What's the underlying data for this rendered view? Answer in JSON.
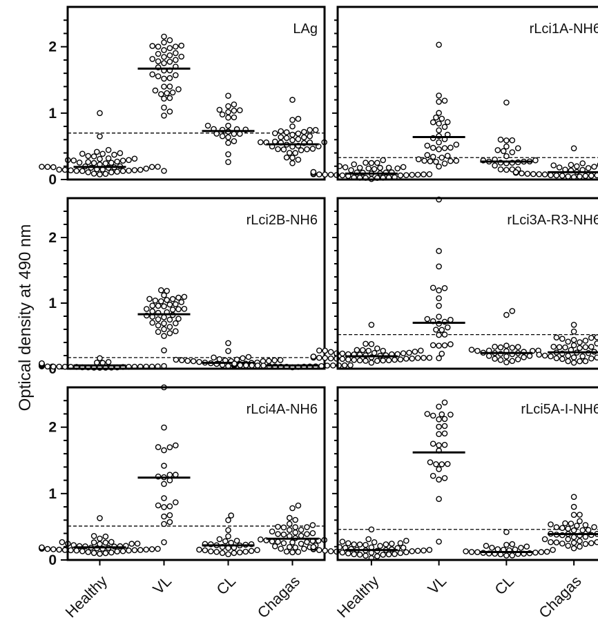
{
  "chart_data": {
    "type": "scatter",
    "ylabel": "Optical density at 490 nm",
    "categories": [
      "Healthy",
      "VL",
      "CL",
      "Chagas"
    ],
    "ylim": [
      0,
      2.6
    ],
    "yticks": [
      0,
      1,
      2
    ],
    "panels": [
      {
        "title": "LAg",
        "cutoff": 0.7,
        "groups": [
          {
            "category": "Healthy",
            "median": 0.19,
            "count": 50,
            "low": 0.05,
            "high": 0.48,
            "outliers": [
              0.65,
              1.0
            ]
          },
          {
            "category": "VL",
            "median": 1.67,
            "count": 40,
            "low": 0.87,
            "high": 2.26,
            "outliers": [
              0.13
            ]
          },
          {
            "category": "CL",
            "median": 0.73,
            "count": 26,
            "low": 0.0,
            "high": 1.37,
            "outliers": []
          },
          {
            "category": "Chagas",
            "median": 0.53,
            "count": 40,
            "low": 0.13,
            "high": 0.95,
            "outliers": [
              1.2
            ]
          }
        ]
      },
      {
        "title": "rLci1A-NH6",
        "cutoff": 0.33,
        "groups": [
          {
            "category": "Healthy",
            "median": 0.09,
            "count": 50,
            "low": 0.0,
            "high": 0.31,
            "outliers": []
          },
          {
            "category": "VL",
            "median": 0.64,
            "count": 34,
            "low": 0.0,
            "high": 1.33,
            "outliers": [
              2.03
            ]
          },
          {
            "category": "CL",
            "median": 0.27,
            "count": 24,
            "low": 0.0,
            "high": 0.65,
            "outliers": [
              1.16
            ]
          },
          {
            "category": "Chagas",
            "median": 0.11,
            "count": 40,
            "low": 0.02,
            "high": 0.28,
            "outliers": [
              0.47
            ]
          }
        ]
      },
      {
        "title": "rLci2B-NH6",
        "cutoff": 0.17,
        "groups": [
          {
            "category": "Healthy",
            "median": 0.05,
            "count": 50,
            "low": 0.01,
            "high": 0.12,
            "outliers": [
              0.16
            ]
          },
          {
            "category": "VL",
            "median": 0.83,
            "count": 40,
            "low": 0.43,
            "high": 1.32,
            "outliers": [
              0.28,
              0.04
            ]
          },
          {
            "category": "CL",
            "median": 0.09,
            "count": 26,
            "low": 0.03,
            "high": 0.2,
            "outliers": [
              0.27,
              0.39
            ]
          },
          {
            "category": "Chagas",
            "median": 0.05,
            "count": 40,
            "low": 0.02,
            "high": 0.08,
            "outliers": []
          }
        ]
      },
      {
        "title": "rLci3A-R3-NH6",
        "cutoff": 0.52,
        "groups": [
          {
            "category": "Healthy",
            "median": 0.19,
            "count": 50,
            "low": 0.03,
            "high": 0.42,
            "outliers": [
              0.67
            ]
          },
          {
            "category": "VL",
            "median": 0.7,
            "count": 24,
            "low": 0.0,
            "high": 1.87,
            "outliers": [
              2.58
            ]
          },
          {
            "category": "CL",
            "median": 0.24,
            "count": 26,
            "low": 0.07,
            "high": 0.41,
            "outliers": [
              0.82,
              0.88
            ]
          },
          {
            "category": "Chagas",
            "median": 0.25,
            "count": 40,
            "low": 0.04,
            "high": 0.58,
            "outliers": [
              0.67
            ]
          }
        ]
      },
      {
        "title": "rLci4A-NH6",
        "cutoff": 0.51,
        "groups": [
          {
            "category": "Healthy",
            "median": 0.19,
            "count": 50,
            "low": 0.07,
            "high": 0.45,
            "outliers": [
              0.63
            ]
          },
          {
            "category": "VL",
            "median": 1.24,
            "count": 22,
            "low": 0.08,
            "high": 2.1,
            "outliers": [
              2.6
            ]
          },
          {
            "category": "CL",
            "median": 0.22,
            "count": 26,
            "low": 0.06,
            "high": 0.48,
            "outliers": [
              0.6,
              0.67
            ]
          },
          {
            "category": "Chagas",
            "median": 0.32,
            "count": 40,
            "low": 0.07,
            "high": 0.65,
            "outliers": [
              0.78,
              0.82
            ]
          }
        ]
      },
      {
        "title": "rLci5A-I-NH6",
        "cutoff": 0.46,
        "groups": [
          {
            "category": "Healthy",
            "median": 0.15,
            "count": 50,
            "low": 0.02,
            "high": 0.36,
            "outliers": [
              0.46
            ]
          },
          {
            "category": "VL",
            "median": 1.62,
            "count": 26,
            "low": 0.0,
            "high": 2.6,
            "outliers": []
          },
          {
            "category": "CL",
            "median": 0.12,
            "count": 26,
            "low": 0.05,
            "high": 0.3,
            "outliers": [
              0.42
            ]
          },
          {
            "category": "Chagas",
            "median": 0.39,
            "count": 40,
            "low": 0.07,
            "high": 0.82,
            "outliers": [
              0.95
            ]
          }
        ]
      }
    ]
  }
}
